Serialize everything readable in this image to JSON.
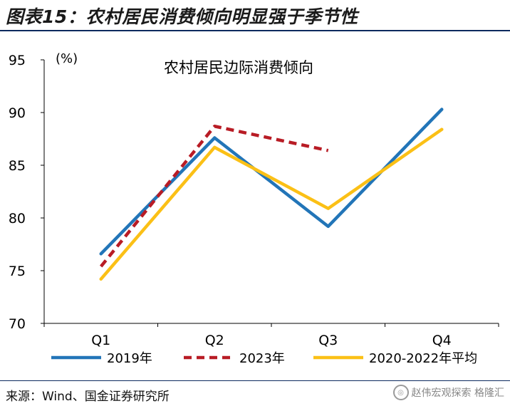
{
  "header": {
    "title": "图表15：农村居民消费倾向明显强于季节性"
  },
  "footer": {
    "source": "来源：Wind、国金证券研究所"
  },
  "watermark": {
    "icon": "wechat-icon",
    "text": "赵伟宏观探索 格隆汇"
  },
  "chart_data": {
    "type": "line",
    "title": "农村居民边际消费倾向",
    "unit_label": "(%)",
    "xlabel": "",
    "ylabel": "",
    "categories": [
      "Q1",
      "Q2",
      "Q3",
      "Q4"
    ],
    "ylim": [
      70,
      95
    ],
    "yticks": [
      70,
      75,
      80,
      85,
      90,
      95
    ],
    "grid": false,
    "legend_position": "bottom",
    "series": [
      {
        "name": "2019年",
        "values": [
          76.6,
          87.6,
          79.2,
          90.3
        ],
        "color": "#2275b8",
        "dash": "solid"
      },
      {
        "name": "2023年",
        "values": [
          75.4,
          88.7,
          86.4,
          null
        ],
        "color": "#b81c25",
        "dash": "dashed"
      },
      {
        "name": "2020-2022年平均",
        "values": [
          74.2,
          86.7,
          80.9,
          88.4
        ],
        "color": "#fbc016",
        "dash": "solid"
      }
    ]
  }
}
